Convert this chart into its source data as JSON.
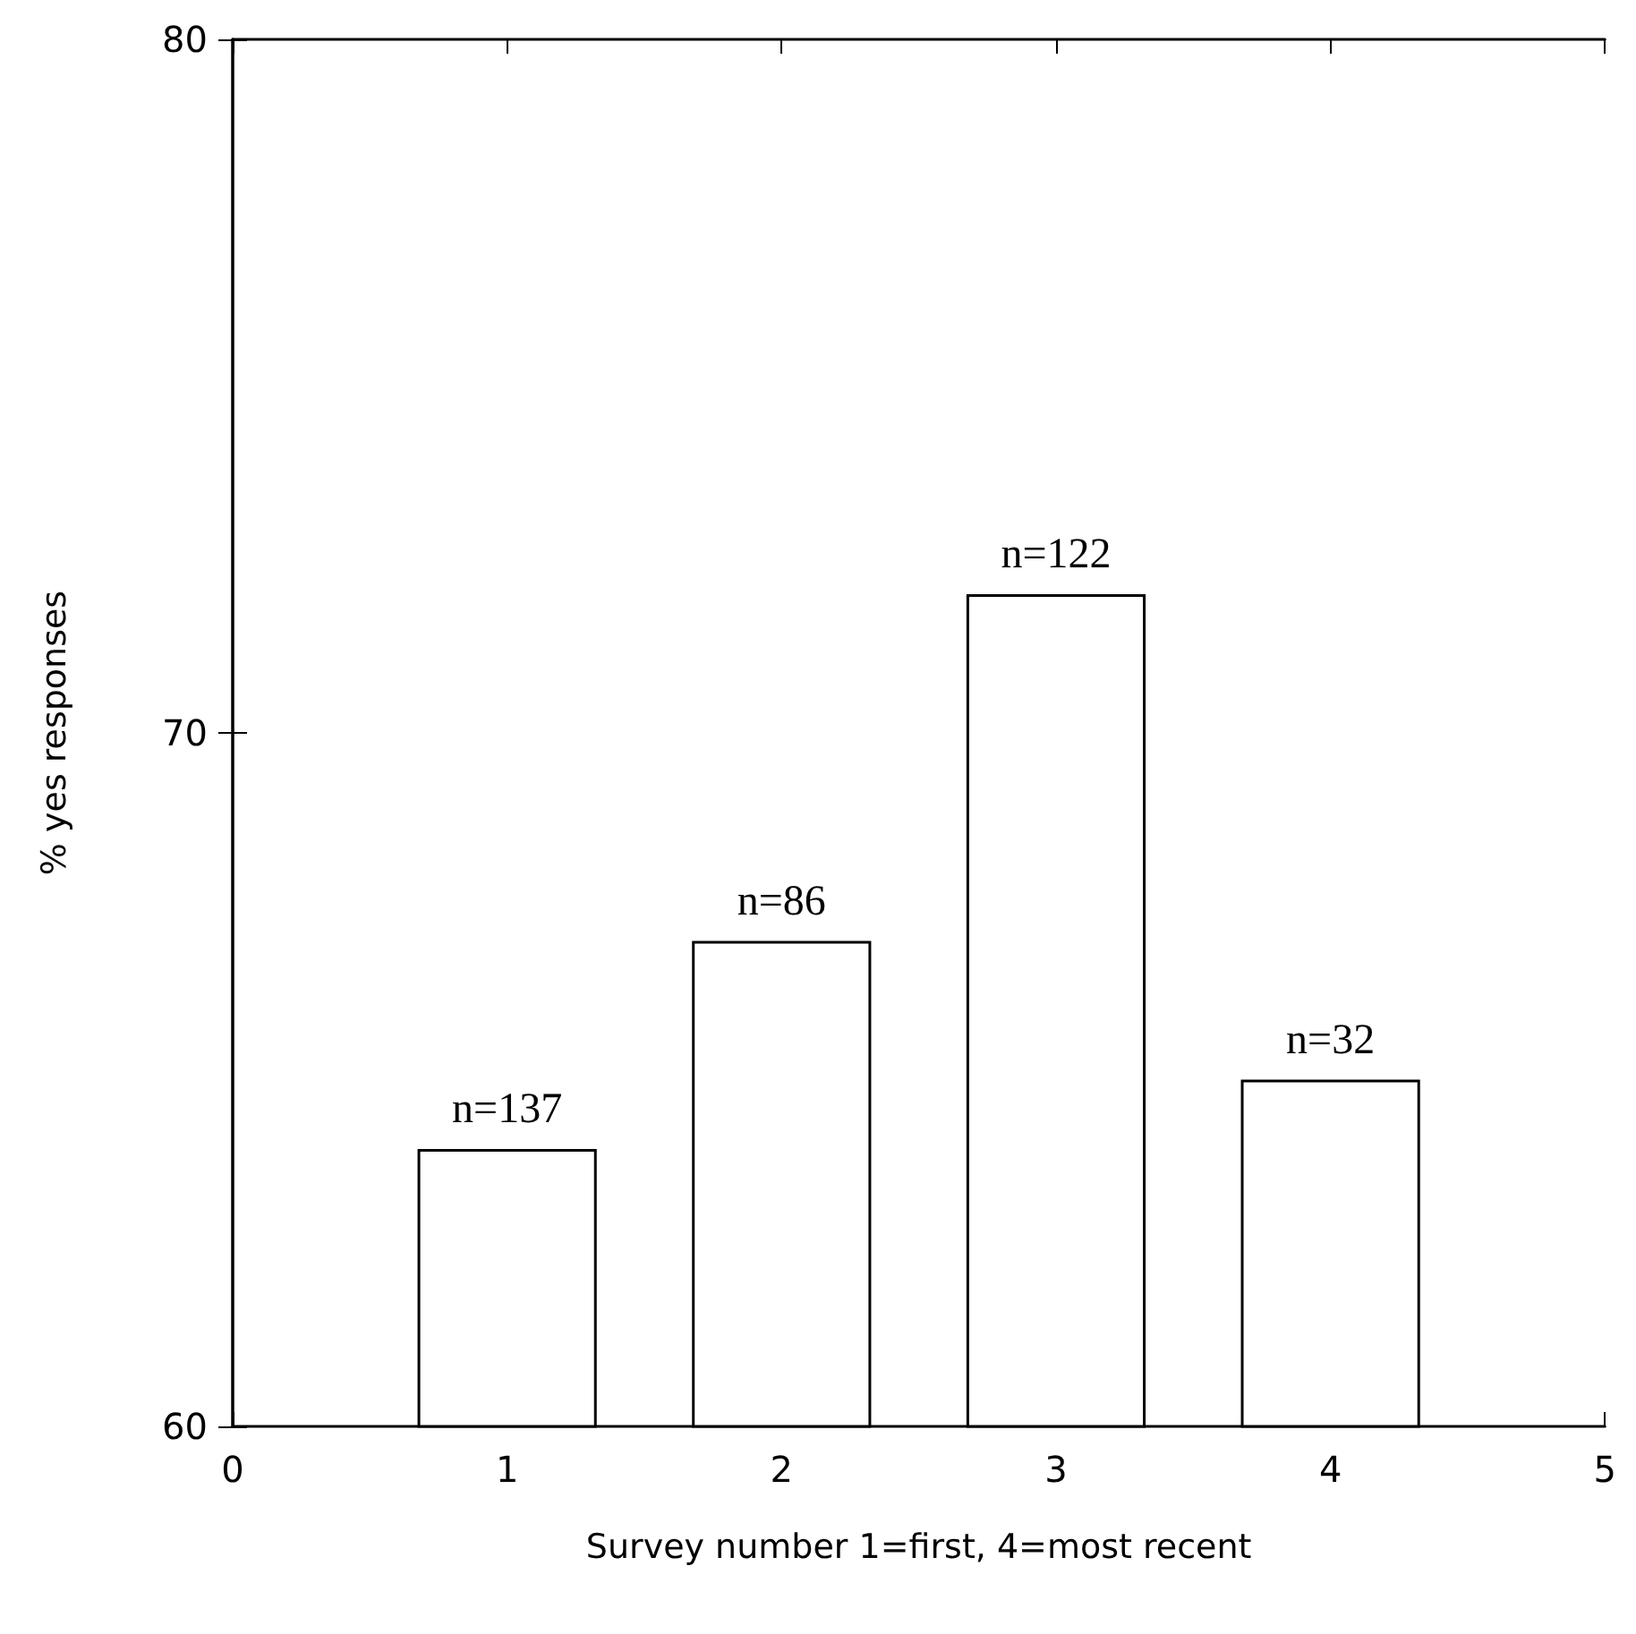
{
  "chart_data": {
    "type": "bar",
    "xlabel": "Survey number 1=first, 4=most recent",
    "ylabel": "% yes responses",
    "x": [
      1,
      2,
      3,
      4
    ],
    "values": [
      64,
      67,
      72,
      65
    ],
    "color": "#ffffff",
    "annotations": [
      {
        "text": "n=137",
        "x": 1,
        "y": 64
      },
      {
        "text": "n=86",
        "x": 2,
        "y": 67
      },
      {
        "text": "n=122",
        "x": 3,
        "y": 72
      },
      {
        "text": "n=32",
        "x": 4,
        "y": 65
      }
    ],
    "xlim": [
      0,
      5
    ],
    "xticks": [
      0,
      1,
      2,
      3,
      4,
      5
    ],
    "ylim": [
      60,
      80
    ],
    "yticks": [
      60,
      70,
      80
    ],
    "grid": false
  }
}
